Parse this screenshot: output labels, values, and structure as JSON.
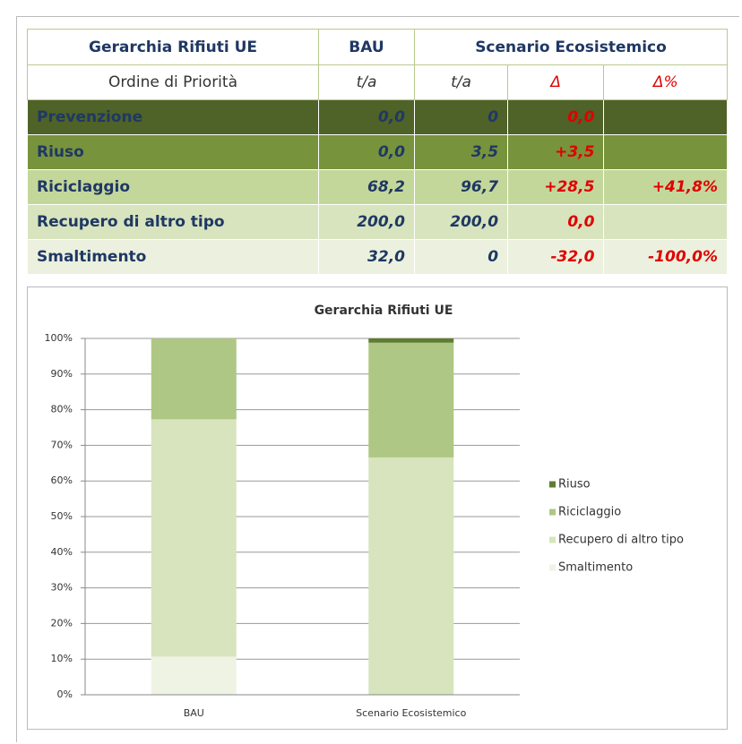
{
  "table": {
    "header": [
      [
        "Gerarchia Rifiuti UE",
        "BAU",
        "Scenario Ecosistemico"
      ],
      [
        "Ordine di Priorità",
        "t/a",
        "t/a",
        "Δ",
        "Δ%"
      ]
    ],
    "rows": [
      [
        "Prevenzione",
        "0,0",
        "0",
        "0,0",
        null
      ],
      [
        "Riuso",
        "0,0",
        "3,5",
        "+3,5",
        null
      ],
      [
        "Riciclaggio",
        "68,2",
        "96,7",
        "+28,5",
        "+41,8%"
      ],
      [
        "Recupero di altro tipo",
        "200,0",
        "200,0",
        "0,0",
        null
      ],
      [
        "Smaltimento",
        "32,0",
        "0",
        "-32,0",
        "-100,0%"
      ]
    ]
  },
  "chart_data": {
    "type": "stacked_bar",
    "title": "Gerarchia Rifiuti UE",
    "categories": [
      "BAU",
      "Scenario Ecosistemico"
    ],
    "series": [
      {
        "name": "Smaltimento",
        "color": "#eef3e4",
        "values": [
          10.7,
          0
        ]
      },
      {
        "name": "Recupero di altro tipo",
        "color": "#d7e4bd",
        "values": [
          66.6,
          66.6
        ]
      },
      {
        "name": "Riciclaggio",
        "color": "#aec784",
        "values": [
          22.7,
          32.2
        ]
      },
      {
        "name": "Riuso",
        "color": "#5f7d32",
        "values": [
          0,
          1.2
        ]
      }
    ],
    "ylim": [
      0,
      100
    ],
    "yticks": [
      {
        "value": 0,
        "label": "0%"
      },
      {
        "value": 10,
        "label": "10%"
      },
      {
        "value": 20,
        "label": "20%"
      },
      {
        "value": 30,
        "label": "30%"
      },
      {
        "value": 40,
        "label": "40%"
      },
      {
        "value": 50,
        "label": "50%"
      },
      {
        "value": 60,
        "label": "60%"
      },
      {
        "value": 70,
        "label": "70%"
      },
      {
        "value": 80,
        "label": "80%"
      },
      {
        "value": 90,
        "label": "90%"
      },
      {
        "value": 100,
        "label": "100%"
      }
    ],
    "grid": true,
    "legend": "right"
  }
}
